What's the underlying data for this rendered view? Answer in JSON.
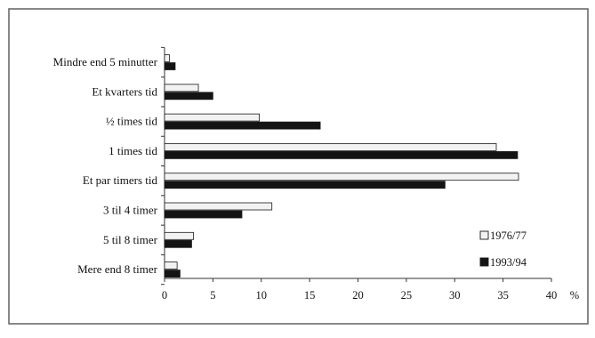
{
  "chart_data": {
    "type": "bar",
    "orientation": "horizontal",
    "categories": [
      "Mindre end 5 minutter",
      "Et kvarters tid",
      "½ times tid",
      "1 times tid",
      "Et par timers tid",
      "3 til 4 timer",
      "5 til 8 timer",
      "Mere end 8 timer"
    ],
    "series": [
      {
        "name": "1976/77",
        "values": [
          0.5,
          3.5,
          9.8,
          34.3,
          36.6,
          11.1,
          3.0,
          1.3
        ],
        "color": "#f2f2f2"
      },
      {
        "name": "1993/94",
        "values": [
          1.1,
          5.0,
          16.1,
          36.5,
          29.0,
          8.0,
          2.8,
          1.6
        ],
        "color": "#141414"
      }
    ],
    "x_ticks": [
      0,
      5,
      10,
      15,
      20,
      25,
      30,
      35,
      40
    ],
    "xlim": [
      0,
      40
    ],
    "x_unit": "%",
    "legend_position": "bottom-right",
    "grid": false
  }
}
